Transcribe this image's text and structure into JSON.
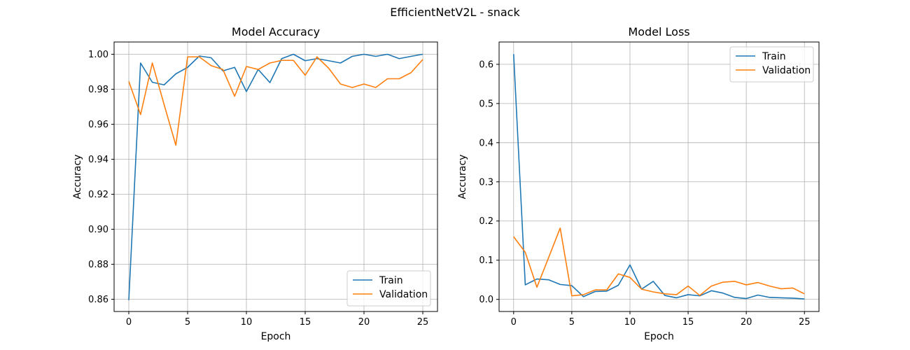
{
  "figure": {
    "title": "EfficientNetV2L - snack"
  },
  "colors": {
    "train": "#1f77b4",
    "validation": "#ff7f0e"
  },
  "chart_data": [
    {
      "type": "line",
      "title": "Model Accuracy",
      "xlabel": "Epoch",
      "ylabel": "Accuracy",
      "xlim": [
        -1.25,
        26.25
      ],
      "ylim": [
        0.853,
        1.007
      ],
      "xticks": [
        0,
        5,
        10,
        15,
        20,
        25
      ],
      "yticks": [
        0.86,
        0.88,
        0.9,
        0.92,
        0.94,
        0.96,
        0.98,
        1.0
      ],
      "ytick_labels": [
        "0.86",
        "0.88",
        "0.90",
        "0.92",
        "0.94",
        "0.96",
        "0.98",
        "1.00"
      ],
      "grid": true,
      "legend_position": "lower-right",
      "x": [
        0,
        1,
        2,
        3,
        4,
        5,
        6,
        7,
        8,
        9,
        10,
        11,
        12,
        13,
        14,
        15,
        16,
        17,
        18,
        19,
        20,
        21,
        22,
        23,
        24,
        25
      ],
      "series": [
        {
          "name": "Train",
          "color": "#1f77b4",
          "values": [
            0.8595,
            0.995,
            0.984,
            0.9825,
            0.9888,
            0.9925,
            0.999,
            0.998,
            0.9905,
            0.9925,
            0.9787,
            0.9913,
            0.9838,
            0.9975,
            1.0,
            0.9963,
            0.9975,
            0.9963,
            0.995,
            0.9988,
            1.0,
            0.9988,
            1.0,
            0.9975,
            0.9988,
            1.0
          ]
        },
        {
          "name": "Validation",
          "color": "#ff7f0e",
          "values": [
            0.9845,
            0.9655,
            0.995,
            0.9713,
            0.948,
            0.9985,
            0.9985,
            0.9935,
            0.9913,
            0.976,
            0.993,
            0.9913,
            0.995,
            0.9965,
            0.9965,
            0.988,
            0.9985,
            0.992,
            0.983,
            0.981,
            0.983,
            0.981,
            0.986,
            0.986,
            0.9895,
            0.997
          ]
        }
      ]
    },
    {
      "type": "line",
      "title": "Model Loss",
      "xlabel": "Epoch",
      "ylabel": "Accuracy",
      "xlim": [
        -1.25,
        26.25
      ],
      "ylim": [
        -0.031,
        0.657
      ],
      "xticks": [
        0,
        5,
        10,
        15,
        20,
        25
      ],
      "yticks": [
        0.0,
        0.1,
        0.2,
        0.3,
        0.4,
        0.5,
        0.6
      ],
      "ytick_labels": [
        "0.0",
        "0.1",
        "0.2",
        "0.3",
        "0.4",
        "0.5",
        "0.6"
      ],
      "grid": true,
      "legend_position": "upper-right",
      "x": [
        0,
        1,
        2,
        3,
        4,
        5,
        6,
        7,
        8,
        9,
        10,
        11,
        12,
        13,
        14,
        15,
        16,
        17,
        18,
        19,
        20,
        21,
        22,
        23,
        24,
        25
      ],
      "series": [
        {
          "name": "Train",
          "color": "#1f77b4",
          "values": [
            0.626,
            0.037,
            0.052,
            0.05,
            0.038,
            0.035,
            0.007,
            0.02,
            0.021,
            0.036,
            0.088,
            0.026,
            0.046,
            0.01,
            0.004,
            0.012,
            0.009,
            0.022,
            0.016,
            0.005,
            0.002,
            0.011,
            0.005,
            0.004,
            0.003,
            0.001
          ]
        },
        {
          "name": "Validation",
          "color": "#ff7f0e",
          "values": [
            0.16,
            0.12,
            0.031,
            0.106,
            0.182,
            0.009,
            0.012,
            0.024,
            0.024,
            0.065,
            0.056,
            0.026,
            0.019,
            0.014,
            0.012,
            0.034,
            0.01,
            0.034,
            0.044,
            0.046,
            0.037,
            0.043,
            0.034,
            0.027,
            0.029,
            0.014
          ]
        }
      ]
    }
  ]
}
